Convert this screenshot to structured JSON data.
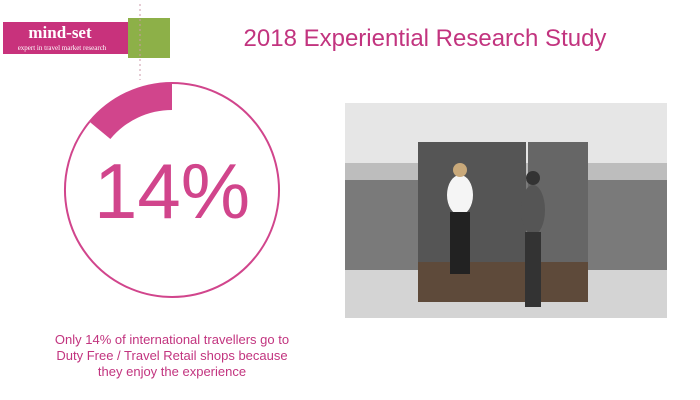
{
  "logo": {
    "name": "mind-set",
    "tagline": "expert in travel market research"
  },
  "title": "2018 Experiential Research Study",
  "chart_data": {
    "type": "donut",
    "values": [
      14,
      86
    ],
    "value_labels": [
      "14%",
      null
    ],
    "colors": [
      "#d1458c",
      "#d1458c"
    ]
  },
  "caption": [
    "Only 14% of international travellers go to",
    "Duty Free / Travel Retail shops because",
    "they enjoy the experience"
  ]
}
